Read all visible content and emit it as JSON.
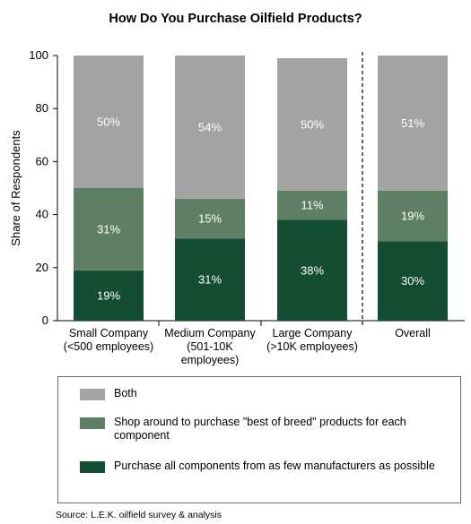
{
  "chart_data": {
    "type": "bar",
    "stacked": true,
    "title": "How Do You Purchase Oilfield Products?",
    "ylabel": "Share of Respondents",
    "ylim": [
      0,
      100
    ],
    "yticks": [
      "0",
      "20",
      "40",
      "60",
      "80",
      "100"
    ],
    "categories": [
      [
        "Small Company",
        "(<500 employees)"
      ],
      [
        "Medium Company",
        "(501-10K",
        "employees)"
      ],
      [
        "Large Company",
        "(>10K employees)"
      ],
      [
        "Overall"
      ]
    ],
    "series": [
      {
        "name": "Purchase all components from as few manufacturers as possible",
        "color": "#134d33",
        "values": [
          19,
          31,
          38,
          30
        ],
        "labels": [
          "19%",
          "31%",
          "38%",
          "30%"
        ]
      },
      {
        "name": "Shop around to purchase \"best of breed\" products for each component",
        "color": "#5e7f63",
        "values": [
          31,
          15,
          11,
          19
        ],
        "labels": [
          "31%",
          "15%",
          "11%",
          "19%"
        ]
      },
      {
        "name": "Both",
        "color": "#a3a3a3",
        "values": [
          50,
          54,
          50,
          51
        ],
        "labels": [
          "50%",
          "54%",
          "50%",
          "51%"
        ]
      }
    ],
    "divider": "dashed line between Large Company and Overall",
    "legend_position": "bottom"
  },
  "legend": [
    {
      "label": "Both",
      "color": "#a3a3a3"
    },
    {
      "label": "Shop around to purchase \"best of breed\" products for each component",
      "color": "#5e7f63"
    },
    {
      "label": "Purchase all components from as few manufacturers as possible",
      "color": "#134d33"
    }
  ],
  "source": "Source: L.E.K. oilfield survey & analysis"
}
